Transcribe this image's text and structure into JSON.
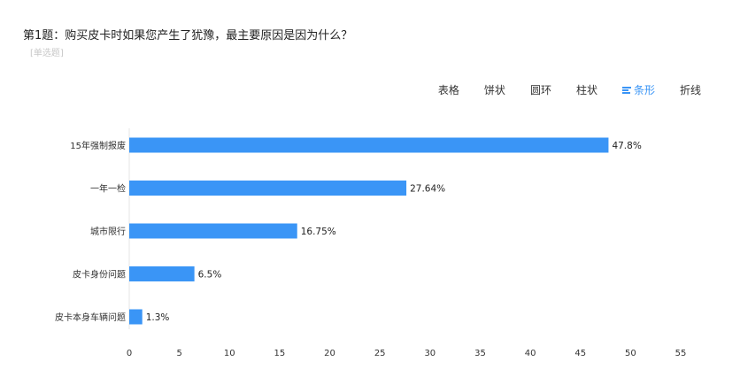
{
  "question": {
    "title": "第1题：购买皮卡时如果您产生了犹豫，最主要原因是因为什么？",
    "tag": "[单选题]"
  },
  "tabs": [
    {
      "label": "表格",
      "active": false
    },
    {
      "label": "饼状",
      "active": false
    },
    {
      "label": "圆环",
      "active": false
    },
    {
      "label": "柱状",
      "active": false
    },
    {
      "label": "条形",
      "active": true,
      "icon": "bar-list-icon"
    },
    {
      "label": "折线",
      "active": false
    }
  ],
  "colors": {
    "bar": "#3a95f6",
    "accent": "#3a95f6"
  },
  "chart_data": {
    "type": "bar",
    "orientation": "horizontal",
    "categories": [
      "15年强制报废",
      "一年一检",
      "城市限行",
      "皮卡身份问题",
      "皮卡本身车辆问题"
    ],
    "values": [
      47.8,
      27.64,
      16.75,
      6.5,
      1.3
    ],
    "value_labels": [
      "47.8%",
      "27.64%",
      "16.75%",
      "6.5%",
      "1.3%"
    ],
    "xlim": [
      0,
      55
    ],
    "xticks": [
      0,
      5,
      10,
      15,
      20,
      25,
      30,
      35,
      40,
      45,
      50,
      55
    ],
    "grid": false,
    "xlabel": "",
    "ylabel": ""
  }
}
